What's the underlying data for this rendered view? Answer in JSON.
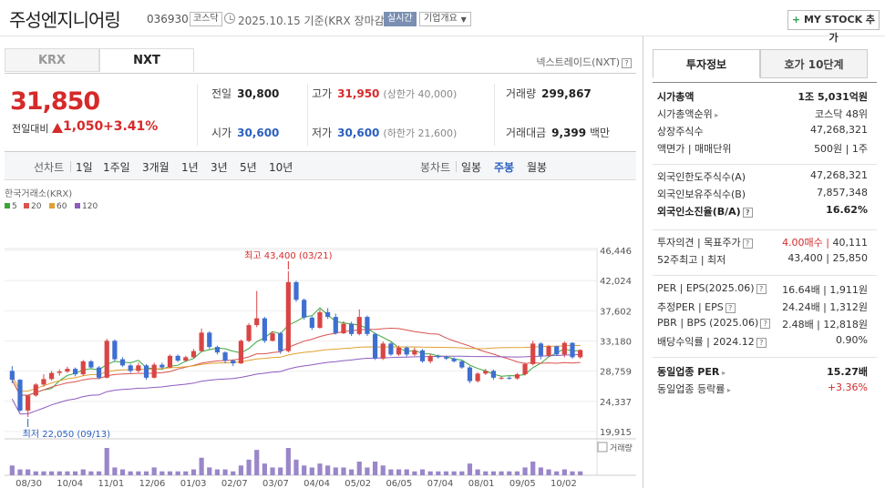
{
  "header": {
    "title": "주성엔지니어링",
    "code": "036930",
    "market": "코스닥",
    "date": "2025.10.15",
    "basis": "기준(KRX 장마감)",
    "realtime": "실시간",
    "corp_info": "기업개요",
    "mystock": "MY STOCK 추가"
  },
  "tabs": {
    "krx": "KRX",
    "nxt": "NXT",
    "nxt_link": "넥스트레이드(NXT)"
  },
  "price": {
    "current": "31,850",
    "change_label": "전일대비",
    "change": "1,050",
    "change_pct": "+3.41%",
    "prev_label": "전일",
    "prev": "30,800",
    "high_label": "고가",
    "high": "31,950",
    "upper_limit": "(상한가 40,000)",
    "volume_label": "거래량",
    "volume": "299,867",
    "open_label": "시가",
    "open": "30,600",
    "low_label": "저가",
    "low": "30,600",
    "lower_limit": "(하한가 21,600)",
    "amount_label": "거래대금",
    "amount": "9,399",
    "amount_unit": "백만"
  },
  "toolbar": {
    "line_label": "선차트",
    "periods": [
      "1일",
      "1주일",
      "3개월",
      "1년",
      "3년",
      "5년",
      "10년"
    ],
    "candle_label": "봉차트",
    "candle_periods": [
      "일봉",
      "주봉",
      "월봉"
    ],
    "active_candle": "주봉"
  },
  "chart_data": {
    "type": "candlestick",
    "source": "한국거래소(KRX)",
    "ma_legend": [
      {
        "name": "5",
        "color": "#3aa63a"
      },
      {
        "name": "20",
        "color": "#d9534f"
      },
      {
        "name": "60",
        "color": "#e0a030"
      },
      {
        "name": "120",
        "color": "#8e5bbf"
      }
    ],
    "y_ticks": [
      "46,446",
      "42,024",
      "37,602",
      "33,180",
      "28,759",
      "24,337",
      "19,915"
    ],
    "ylim": [
      19915,
      46446
    ],
    "x_ticks": [
      "08/30",
      "10/04",
      "11/01",
      "12/06",
      "01/03",
      "02/07",
      "03/07",
      "04/04",
      "05/02",
      "06/05",
      "07/04",
      "08/01",
      "09/05",
      "10/02"
    ],
    "high_annotation": "최고 43,400 (03/21)",
    "low_annotation": "최저 22,050 (09/13)",
    "volume_label": "거래량",
    "candles": [
      [
        28800,
        27500,
        29500,
        27000
      ],
      [
        27500,
        23000,
        27600,
        22800
      ],
      [
        23000,
        25200,
        25300,
        22050
      ],
      [
        25200,
        26800,
        27000,
        25000
      ],
      [
        26800,
        27600,
        28300,
        26500
      ],
      [
        27600,
        28500,
        28800,
        27400
      ],
      [
        28500,
        28700,
        29000,
        28100
      ],
      [
        28700,
        29100,
        29400,
        28500
      ],
      [
        29100,
        28300,
        29300,
        28000
      ],
      [
        28300,
        30200,
        30400,
        28100
      ],
      [
        30200,
        29300,
        30400,
        29100
      ],
      [
        29300,
        27800,
        29500,
        27600
      ],
      [
        27800,
        33200,
        33500,
        27700
      ],
      [
        33200,
        30500,
        33400,
        30200
      ],
      [
        30500,
        29600,
        30800,
        29400
      ],
      [
        29600,
        28800,
        29800,
        28500
      ],
      [
        28800,
        29600,
        30000,
        28600
      ],
      [
        29600,
        27800,
        29800,
        27500
      ],
      [
        27800,
        29700,
        30000,
        27700
      ],
      [
        29700,
        29300,
        30000,
        29100
      ],
      [
        29300,
        31000,
        31200,
        29200
      ],
      [
        31000,
        30300,
        31200,
        30100
      ],
      [
        30300,
        30800,
        31000,
        30100
      ],
      [
        30800,
        31700,
        32000,
        30600
      ],
      [
        31700,
        34400,
        35000,
        31600
      ],
      [
        34400,
        32300,
        34600,
        32000
      ],
      [
        32300,
        31500,
        32500,
        31200
      ],
      [
        31500,
        30300,
        31700,
        29900
      ],
      [
        30300,
        29900,
        30500,
        29500
      ],
      [
        29900,
        33200,
        33400,
        29800
      ],
      [
        33200,
        35500,
        35800,
        33000
      ],
      [
        35500,
        36500,
        40500,
        35200
      ],
      [
        36500,
        33200,
        36700,
        32900
      ],
      [
        33200,
        34300,
        34600,
        33100
      ],
      [
        34300,
        31700,
        34500,
        31300
      ],
      [
        31700,
        41800,
        43400,
        31500
      ],
      [
        41800,
        39200,
        42000,
        38900
      ],
      [
        39200,
        36600,
        39400,
        36300
      ],
      [
        36600,
        35100,
        36800,
        34800
      ],
      [
        35100,
        37400,
        37800,
        35000
      ],
      [
        37400,
        36700,
        38000,
        36400
      ],
      [
        36700,
        34300,
        37200,
        34100
      ],
      [
        34300,
        35700,
        36100,
        34200
      ],
      [
        35700,
        34200,
        36000,
        33900
      ],
      [
        34200,
        36700,
        37800,
        34000
      ],
      [
        36700,
        34200,
        36900,
        33900
      ],
      [
        34200,
        30600,
        34400,
        30400
      ],
      [
        30600,
        32800,
        33100,
        30400
      ],
      [
        32800,
        31200,
        33000,
        31000
      ],
      [
        31200,
        32200,
        32500,
        31000
      ],
      [
        32200,
        31200,
        32400,
        30900
      ],
      [
        31200,
        31800,
        32200,
        31000
      ],
      [
        31800,
        30200,
        32000,
        30000
      ],
      [
        30200,
        31000,
        31300,
        29900
      ],
      [
        31000,
        30800,
        31200,
        30600
      ],
      [
        30800,
        30600,
        31000,
        30400
      ],
      [
        30600,
        30200,
        30800,
        30000
      ],
      [
        30200,
        29300,
        30400,
        29100
      ],
      [
        29300,
        27300,
        29500,
        27000
      ],
      [
        27300,
        28400,
        28600,
        27100
      ],
      [
        28400,
        28800,
        29100,
        28200
      ],
      [
        28800,
        27800,
        29000,
        27500
      ],
      [
        27800,
        27800,
        28000,
        27500
      ],
      [
        27800,
        27700,
        28000,
        27500
      ],
      [
        27700,
        28300,
        28500,
        27500
      ],
      [
        28300,
        29800,
        30000,
        28100
      ],
      [
        29800,
        32800,
        33200,
        29600
      ],
      [
        32800,
        31000,
        33000,
        30500
      ],
      [
        31000,
        32400,
        32600,
        30900
      ],
      [
        32400,
        31200,
        32500,
        31000
      ],
      [
        31200,
        32900,
        33100,
        30800
      ],
      [
        32900,
        30800,
        33000,
        30600
      ],
      [
        30800,
        31850,
        31950,
        30600
      ]
    ],
    "volumes": [
      5,
      3,
      3,
      2,
      2,
      2,
      2,
      2,
      2,
      3,
      2,
      2,
      14,
      4,
      3,
      2,
      2,
      2,
      4,
      2,
      2,
      2,
      2,
      3,
      9,
      4,
      3,
      3,
      2,
      5,
      8,
      13,
      6,
      4,
      4,
      14,
      8,
      5,
      4,
      6,
      5,
      4,
      4,
      3,
      7,
      4,
      7,
      5,
      3,
      3,
      3,
      2,
      3,
      2,
      2,
      2,
      2,
      2,
      6,
      3,
      2,
      2,
      2,
      2,
      2,
      4,
      7,
      4,
      3,
      2,
      3,
      2,
      2
    ]
  },
  "right": {
    "tab_on": "투자정보",
    "tab_off": "호가 10단계",
    "rows1": [
      {
        "k": "시가총액",
        "v": "1조 5,031억원",
        "bold": true
      },
      {
        "k": "시가총액순위",
        "v": "코스닥 48위",
        "arrow": true
      },
      {
        "k": "상장주식수",
        "v": "47,268,321"
      },
      {
        "k": "액면가 | 매매단위",
        "v": "500원 | 1주"
      }
    ],
    "rows2": [
      {
        "k": "외국인한도주식수(A)",
        "v": "47,268,321"
      },
      {
        "k": "외국인보유주식수(B)",
        "v": "7,857,348"
      },
      {
        "k": "외국인소진율(B/A)",
        "v": "16.62%",
        "bold": true,
        "help": true
      }
    ],
    "rows3": [
      {
        "k": "투자의견 | 목표주가",
        "v_red": "4.00매수",
        "v": "40,111",
        "help": true
      },
      {
        "k": "52주최고 | 최저",
        "v": "43,400 | 25,850"
      }
    ],
    "rows4": [
      {
        "k": "PER | EPS(2025.06)",
        "v": "16.64배 | 1,911원",
        "help": true
      },
      {
        "k": "추정PER | EPS",
        "v": "24.24배 | 1,312원",
        "help": true
      },
      {
        "k": "PBR | BPS (2025.06)",
        "v": "2.48배 | 12,818원",
        "help": true
      },
      {
        "k": "배당수익률 | 2024.12",
        "v": "0.90%",
        "help": true
      }
    ],
    "rows5": [
      {
        "k": "동일업종 PER",
        "v": "15.27배",
        "bold": true,
        "arrow": true
      },
      {
        "k": "동일업종 등락률",
        "v": "+3.36%",
        "arrow": true,
        "red": true
      }
    ]
  }
}
